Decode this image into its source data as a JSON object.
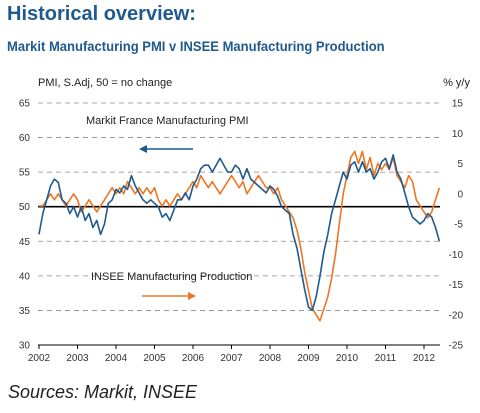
{
  "header": {
    "title": "Historical overview:",
    "subtitle": "Markit Manufacturing PMI v INSEE Manufacturing Production"
  },
  "footer": {
    "sources": "Sources: Markit, INSEE"
  },
  "colors": {
    "pmi": "#1f5a8f",
    "production": "#ee7623",
    "title": "#1f5a8f",
    "grid": "#888888",
    "axis": "#000000"
  },
  "chart_data": {
    "type": "line",
    "left_axis_label": "PMI, S.Adj, 50 = no change",
    "right_axis_label": "% y/y",
    "left_ylim": [
      30,
      65
    ],
    "left_ticks": [
      "30",
      "35",
      "40",
      "45",
      "50",
      "55",
      "60",
      "65"
    ],
    "right_ylim": [
      -25,
      15
    ],
    "right_ticks": [
      "-25",
      "-20",
      "-15",
      "-10",
      "-5",
      "0",
      "5",
      "10",
      "15"
    ],
    "xlim": [
      2002,
      2012.4
    ],
    "x_ticks": [
      "2002",
      "2003",
      "2004",
      "2005",
      "2006",
      "2007",
      "2008",
      "2009",
      "2010",
      "2011",
      "2012"
    ],
    "grid": "dashed horizontal",
    "reference_line": {
      "axis": "left",
      "value": 50
    },
    "annotations": [
      {
        "text": "Markit France Manufacturing PMI",
        "arrow": "left",
        "series": "pmi"
      },
      {
        "text": "INSEE Manufacturing Production",
        "arrow": "right",
        "series": "production"
      }
    ],
    "series": [
      {
        "name": "Markit France Manufacturing PMI",
        "key": "pmi",
        "axis": "left",
        "points": [
          [
            2002.0,
            46
          ],
          [
            2002.1,
            49
          ],
          [
            2002.2,
            51
          ],
          [
            2002.3,
            53
          ],
          [
            2002.4,
            54
          ],
          [
            2002.5,
            53.5
          ],
          [
            2002.6,
            51
          ],
          [
            2002.7,
            50.5
          ],
          [
            2002.8,
            49
          ],
          [
            2002.9,
            50
          ],
          [
            2003.0,
            48.5
          ],
          [
            2003.1,
            50
          ],
          [
            2003.2,
            48
          ],
          [
            2003.3,
            49
          ],
          [
            2003.4,
            47
          ],
          [
            2003.5,
            48
          ],
          [
            2003.6,
            46
          ],
          [
            2003.7,
            47.5
          ],
          [
            2003.8,
            50.5
          ],
          [
            2003.9,
            51
          ],
          [
            2004.0,
            52.5
          ],
          [
            2004.1,
            52
          ],
          [
            2004.2,
            53
          ],
          [
            2004.3,
            52.5
          ],
          [
            2004.4,
            54.5
          ],
          [
            2004.5,
            53
          ],
          [
            2004.6,
            52
          ],
          [
            2004.7,
            51
          ],
          [
            2004.8,
            50.5
          ],
          [
            2004.9,
            51
          ],
          [
            2005.0,
            50.5
          ],
          [
            2005.1,
            50
          ],
          [
            2005.2,
            48.5
          ],
          [
            2005.3,
            49
          ],
          [
            2005.4,
            48
          ],
          [
            2005.5,
            49.5
          ],
          [
            2005.6,
            51
          ],
          [
            2005.7,
            51
          ],
          [
            2005.8,
            52
          ],
          [
            2005.9,
            51
          ],
          [
            2006.0,
            53
          ],
          [
            2006.1,
            54
          ],
          [
            2006.2,
            55.5
          ],
          [
            2006.3,
            56
          ],
          [
            2006.4,
            56
          ],
          [
            2006.5,
            55
          ],
          [
            2006.6,
            56
          ],
          [
            2006.7,
            57
          ],
          [
            2006.8,
            56
          ],
          [
            2006.9,
            55
          ],
          [
            2007.0,
            55
          ],
          [
            2007.1,
            56
          ],
          [
            2007.2,
            55.5
          ],
          [
            2007.3,
            54
          ],
          [
            2007.4,
            55.5
          ],
          [
            2007.5,
            54
          ],
          [
            2007.6,
            53.5
          ],
          [
            2007.7,
            53
          ],
          [
            2007.8,
            52.5
          ],
          [
            2007.9,
            52
          ],
          [
            2008.0,
            53
          ],
          [
            2008.1,
            52.5
          ],
          [
            2008.2,
            51.5
          ],
          [
            2008.3,
            50
          ],
          [
            2008.4,
            49.5
          ],
          [
            2008.5,
            49
          ],
          [
            2008.6,
            46
          ],
          [
            2008.7,
            44
          ],
          [
            2008.8,
            41
          ],
          [
            2008.9,
            38
          ],
          [
            2009.0,
            35.5
          ],
          [
            2009.1,
            35
          ],
          [
            2009.2,
            37
          ],
          [
            2009.3,
            40
          ],
          [
            2009.4,
            43.5
          ],
          [
            2009.5,
            46
          ],
          [
            2009.6,
            49
          ],
          [
            2009.7,
            51
          ],
          [
            2009.8,
            53
          ],
          [
            2009.9,
            55
          ],
          [
            2010.0,
            54
          ],
          [
            2010.1,
            56
          ],
          [
            2010.2,
            56.5
          ],
          [
            2010.3,
            55
          ],
          [
            2010.4,
            56.5
          ],
          [
            2010.5,
            55
          ],
          [
            2010.6,
            55.5
          ],
          [
            2010.7,
            54
          ],
          [
            2010.8,
            55
          ],
          [
            2010.9,
            56.5
          ],
          [
            2011.0,
            57
          ],
          [
            2011.1,
            55.5
          ],
          [
            2011.2,
            57.5
          ],
          [
            2011.3,
            55
          ],
          [
            2011.4,
            54
          ],
          [
            2011.5,
            52
          ],
          [
            2011.6,
            50
          ],
          [
            2011.7,
            48.5
          ],
          [
            2011.8,
            48
          ],
          [
            2011.9,
            47.5
          ],
          [
            2012.0,
            48
          ],
          [
            2012.1,
            49
          ],
          [
            2012.2,
            48.5
          ],
          [
            2012.3,
            47
          ],
          [
            2012.4,
            45
          ]
        ]
      },
      {
        "name": "INSEE Manufacturing Production",
        "key": "production",
        "axis": "right",
        "points": [
          [
            2002.0,
            -2
          ],
          [
            2002.1,
            -2
          ],
          [
            2002.2,
            -1
          ],
          [
            2002.3,
            0
          ],
          [
            2002.4,
            -1
          ],
          [
            2002.5,
            0
          ],
          [
            2002.6,
            -1
          ],
          [
            2002.7,
            -2
          ],
          [
            2002.8,
            -1
          ],
          [
            2002.9,
            0
          ],
          [
            2003.0,
            -1
          ],
          [
            2003.1,
            -3
          ],
          [
            2003.2,
            -2
          ],
          [
            2003.3,
            -1
          ],
          [
            2003.4,
            -2
          ],
          [
            2003.5,
            -3
          ],
          [
            2003.6,
            -2
          ],
          [
            2003.7,
            -1
          ],
          [
            2003.8,
            0
          ],
          [
            2003.9,
            1
          ],
          [
            2004.0,
            0
          ],
          [
            2004.1,
            1
          ],
          [
            2004.2,
            0
          ],
          [
            2004.3,
            2
          ],
          [
            2004.4,
            1
          ],
          [
            2004.5,
            0
          ],
          [
            2004.6,
            1
          ],
          [
            2004.7,
            0
          ],
          [
            2004.8,
            1
          ],
          [
            2004.9,
            0
          ],
          [
            2005.0,
            1
          ],
          [
            2005.1,
            -1
          ],
          [
            2005.2,
            -2
          ],
          [
            2005.3,
            -1
          ],
          [
            2005.4,
            -2
          ],
          [
            2005.5,
            -1
          ],
          [
            2005.6,
            0
          ],
          [
            2005.7,
            -1
          ],
          [
            2005.8,
            0
          ],
          [
            2005.9,
            1
          ],
          [
            2006.0,
            2
          ],
          [
            2006.1,
            1
          ],
          [
            2006.2,
            3
          ],
          [
            2006.3,
            2
          ],
          [
            2006.4,
            1
          ],
          [
            2006.5,
            2
          ],
          [
            2006.6,
            1
          ],
          [
            2006.7,
            0
          ],
          [
            2006.8,
            1
          ],
          [
            2006.9,
            2
          ],
          [
            2007.0,
            3
          ],
          [
            2007.1,
            2
          ],
          [
            2007.2,
            1
          ],
          [
            2007.3,
            2
          ],
          [
            2007.4,
            0
          ],
          [
            2007.5,
            1
          ],
          [
            2007.6,
            2
          ],
          [
            2007.7,
            3
          ],
          [
            2007.8,
            2
          ],
          [
            2007.9,
            1
          ],
          [
            2008.0,
            1
          ],
          [
            2008.1,
            0
          ],
          [
            2008.2,
            1
          ],
          [
            2008.3,
            -1
          ],
          [
            2008.4,
            -2
          ],
          [
            2008.5,
            -3
          ],
          [
            2008.6,
            -4
          ],
          [
            2008.7,
            -6
          ],
          [
            2008.8,
            -9
          ],
          [
            2008.9,
            -13
          ],
          [
            2009.0,
            -16
          ],
          [
            2009.1,
            -19
          ],
          [
            2009.2,
            -20
          ],
          [
            2009.3,
            -21
          ],
          [
            2009.4,
            -19
          ],
          [
            2009.5,
            -17
          ],
          [
            2009.6,
            -14
          ],
          [
            2009.7,
            -10
          ],
          [
            2009.8,
            -5
          ],
          [
            2009.9,
            0
          ],
          [
            2010.0,
            3
          ],
          [
            2010.1,
            6
          ],
          [
            2010.2,
            7
          ],
          [
            2010.3,
            5
          ],
          [
            2010.4,
            7
          ],
          [
            2010.5,
            4
          ],
          [
            2010.6,
            6
          ],
          [
            2010.7,
            3
          ],
          [
            2010.8,
            5
          ],
          [
            2010.9,
            4
          ],
          [
            2011.0,
            5
          ],
          [
            2011.1,
            4
          ],
          [
            2011.2,
            6
          ],
          [
            2011.3,
            3
          ],
          [
            2011.4,
            2
          ],
          [
            2011.5,
            1
          ],
          [
            2011.6,
            3
          ],
          [
            2011.7,
            2
          ],
          [
            2011.8,
            -1
          ],
          [
            2011.9,
            -2
          ],
          [
            2012.0,
            -3
          ],
          [
            2012.1,
            -4
          ],
          [
            2012.2,
            -3
          ],
          [
            2012.3,
            -1
          ],
          [
            2012.4,
            1
          ]
        ]
      }
    ]
  }
}
